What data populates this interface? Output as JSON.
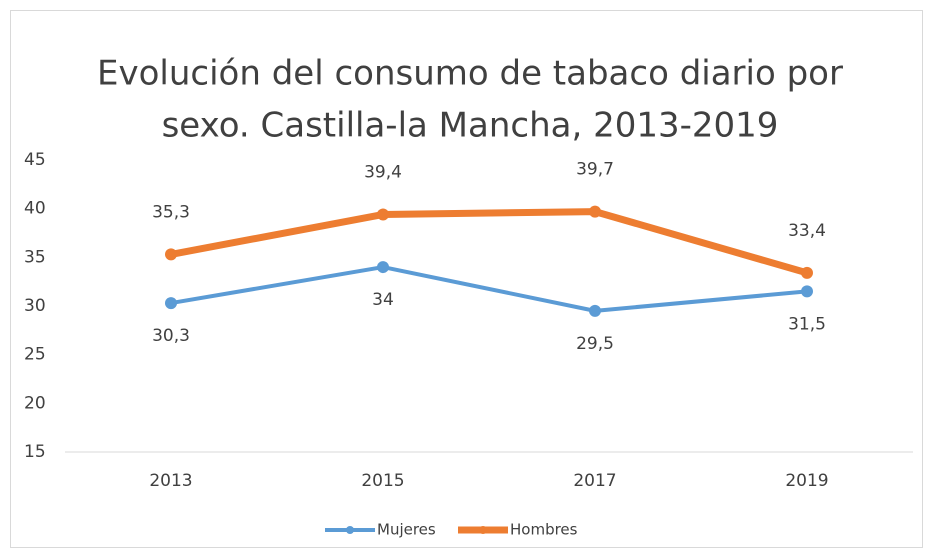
{
  "chart_data": {
    "type": "line",
    "title": [
      "Evolución del consumo de tabaco diario por",
      "sexo. Castilla-la Mancha, 2013-2019"
    ],
    "categories": [
      "2013",
      "2015",
      "2017",
      "2019"
    ],
    "series": [
      {
        "name": "Mujeres",
        "color": "#5b9bd5",
        "values": [
          30.3,
          34,
          29.5,
          31.5
        ],
        "value_labels": [
          "30,3",
          "34",
          "29,5",
          "31,5"
        ],
        "label_position": "below"
      },
      {
        "name": "Hombres",
        "color": "#ed7d31",
        "values": [
          35.3,
          39.4,
          39.7,
          33.4
        ],
        "value_labels": [
          "35,3",
          "39,4",
          "39,7",
          "33,4"
        ],
        "label_position": "above"
      }
    ],
    "ylim": [
      15,
      45
    ],
    "yticks": [
      15,
      20,
      25,
      30,
      35,
      40,
      45
    ],
    "grid": false,
    "legend": "bottom"
  }
}
